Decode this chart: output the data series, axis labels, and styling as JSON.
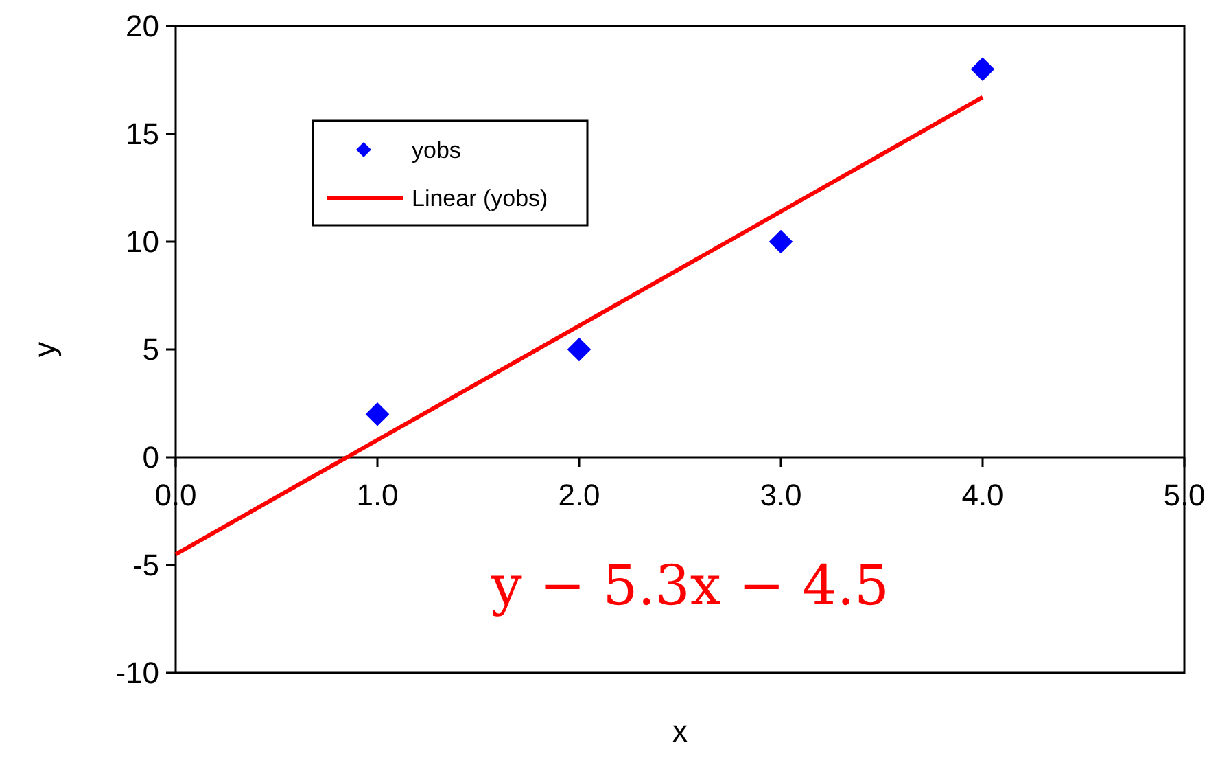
{
  "chart_data": {
    "type": "scatter",
    "xlabel": "x",
    "ylabel": "y",
    "xlim": [
      0,
      5
    ],
    "ylim": [
      -10,
      20
    ],
    "xticks": [
      {
        "value": 0,
        "label": "0.0"
      },
      {
        "value": 1,
        "label": "1.0"
      },
      {
        "value": 2,
        "label": "2.0"
      },
      {
        "value": 3,
        "label": "3.0"
      },
      {
        "value": 4,
        "label": "4.0"
      },
      {
        "value": 5,
        "label": "5.0"
      }
    ],
    "yticks": [
      -10,
      -5,
      0,
      5,
      10,
      15,
      20
    ],
    "grid": false,
    "legend": "top left",
    "series": [
      {
        "name": "yobs",
        "marker": "diamond",
        "color": "#0000ff",
        "x": [
          1,
          2,
          3,
          4
        ],
        "values": [
          2,
          5,
          10,
          18
        ]
      },
      {
        "name": "Linear (yobs)",
        "type": "line",
        "color": "#ff0000",
        "line_style": "solid",
        "x": [
          0,
          4
        ],
        "values": [
          -4.5,
          16.7
        ]
      }
    ],
    "annotations": [
      "y − 5.3x − 4.5"
    ]
  }
}
